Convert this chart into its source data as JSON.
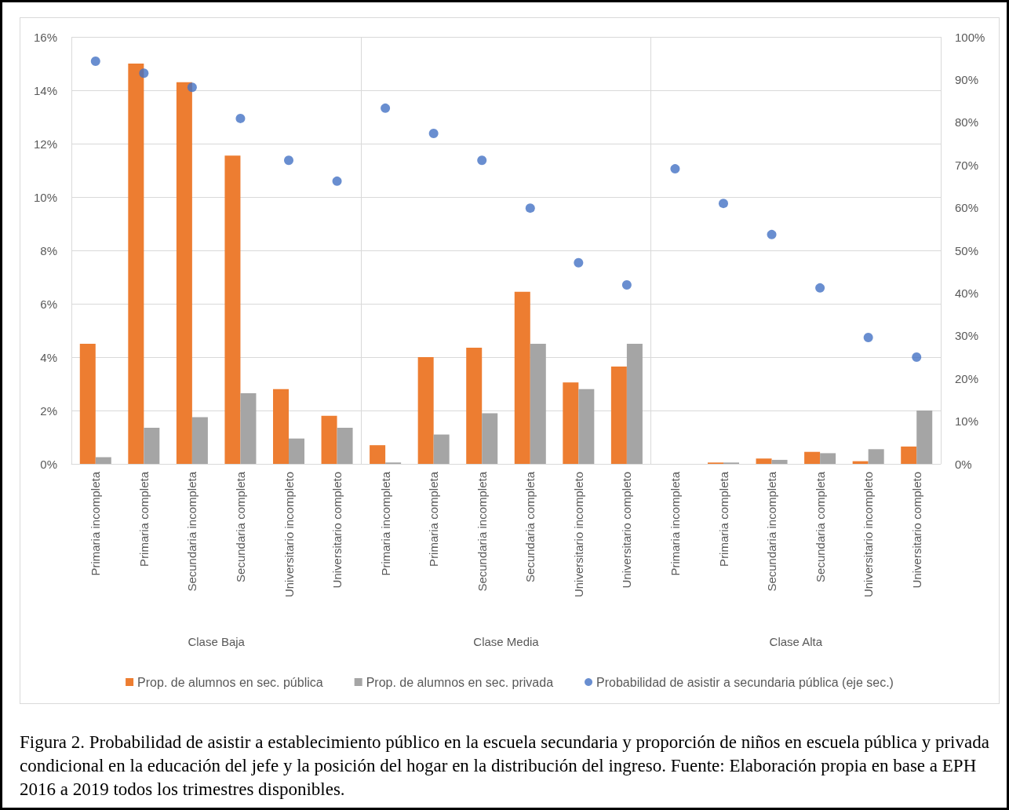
{
  "chart_data": {
    "type": "bar",
    "categories": [
      "Primaria incompleta",
      "Primaria completa",
      "Secundaria incompleta",
      "Secundaria completa",
      "Universitario incompleto",
      "Universitario completo",
      "Primaria incompleta",
      "Primaria completa",
      "Secundaria incompleta",
      "Secundaria completa",
      "Universitario incompleto",
      "Universitario completo",
      "Primaria incompleta",
      "Primaria completa",
      "Secundaria incompleta",
      "Secundaria completa",
      "Universitario incompleto",
      "Universitario completo"
    ],
    "series": [
      {
        "name": "Prop. de alumnos en sec. pública",
        "color": "#ed7d31",
        "values": [
          4.5,
          15.0,
          14.3,
          11.55,
          2.8,
          1.8,
          0.7,
          4.0,
          4.35,
          6.45,
          3.05,
          3.65,
          0,
          0.05,
          0.2,
          0.45,
          0.1,
          0.65
        ]
      },
      {
        "name": "Prop. de alumnos en sec. privada",
        "color": "#a5a5a5",
        "values": [
          0.25,
          1.35,
          1.75,
          2.65,
          0.95,
          1.35,
          0.05,
          1.1,
          1.9,
          4.5,
          2.8,
          4.5,
          0,
          0.05,
          0.15,
          0.4,
          0.55,
          2.0
        ]
      },
      {
        "name": "Probabilidad de asistir a secundaria pública (eje sec.)",
        "type": "scatter",
        "axis": "y2",
        "color": "#4472c4",
        "values": [
          94.3,
          91.5,
          88.2,
          80.9,
          71.1,
          66.2,
          83.3,
          77.4,
          71.1,
          59.9,
          47.1,
          41.9,
          69.1,
          61.0,
          53.7,
          41.2,
          29.6,
          25.0
        ]
      }
    ],
    "ylim": [
      0,
      16
    ],
    "yticks": [
      {
        "value": 0,
        "label": "0%"
      },
      {
        "value": 2,
        "label": "2%"
      },
      {
        "value": 4,
        "label": "4%"
      },
      {
        "value": 6,
        "label": "6%"
      },
      {
        "value": 8,
        "label": "8%"
      },
      {
        "value": 10,
        "label": "10%"
      },
      {
        "value": 12,
        "label": "12%"
      },
      {
        "value": 14,
        "label": "14%"
      },
      {
        "value": 16,
        "label": "16%"
      }
    ],
    "y2lim": [
      0,
      100
    ],
    "y2ticks": [
      {
        "value": 0,
        "label": "0%"
      },
      {
        "value": 10,
        "label": "10%"
      },
      {
        "value": 20,
        "label": "20%"
      },
      {
        "value": 30,
        "label": "30%"
      },
      {
        "value": 40,
        "label": "40%"
      },
      {
        "value": 50,
        "label": "50%"
      },
      {
        "value": 60,
        "label": "60%"
      },
      {
        "value": 70,
        "label": "70%"
      },
      {
        "value": 80,
        "label": "80%"
      },
      {
        "value": 90,
        "label": "90%"
      },
      {
        "value": 100,
        "label": "100%"
      }
    ],
    "grid": "y",
    "legend": "bottom",
    "marker": "circle",
    "annotations": [
      "Clase Baja",
      "Clase Media",
      "Clase Alta",
      "Figura 2. Probabilidad de asistir a establecimiento público en la escuela secundaria y proporción de niños en escuela pública y privada condicional en la educación del jefe y la posición del hogar en la distribución del ingreso. Fuente: Elaboración propia en base a EPH 2016 a 2019 todos los trimestres disponibles."
    ]
  }
}
